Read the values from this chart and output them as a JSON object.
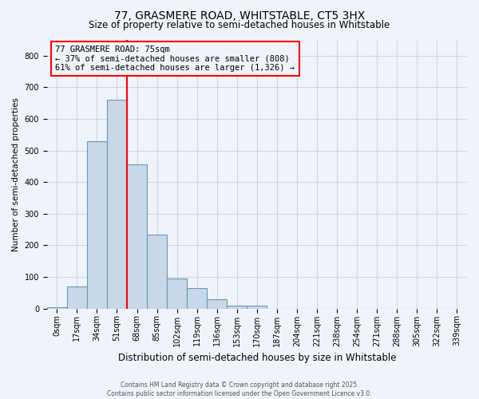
{
  "title": "77, GRASMERE ROAD, WHITSTABLE, CT5 3HX",
  "subtitle": "Size of property relative to semi-detached houses in Whitstable",
  "xlabel": "Distribution of semi-detached houses by size in Whitstable",
  "ylabel": "Number of semi-detached properties",
  "bar_labels": [
    "0sqm",
    "17sqm",
    "34sqm",
    "51sqm",
    "68sqm",
    "85sqm",
    "102sqm",
    "119sqm",
    "136sqm",
    "153sqm",
    "170sqm",
    "187sqm",
    "204sqm",
    "221sqm",
    "238sqm",
    "254sqm",
    "271sqm",
    "288sqm",
    "305sqm",
    "322sqm",
    "339sqm"
  ],
  "bar_values": [
    3,
    70,
    530,
    660,
    455,
    235,
    95,
    65,
    30,
    8,
    8,
    0,
    0,
    0,
    0,
    0,
    0,
    0,
    0,
    0,
    0
  ],
  "bar_color": "#c8d8e8",
  "bar_edge_color": "#6699bb",
  "vline_x": 3.5,
  "vline_color": "red",
  "annotation_box_color": "red",
  "ylim": [
    0,
    850
  ],
  "yticks": [
    0,
    100,
    200,
    300,
    400,
    500,
    600,
    700,
    800
  ],
  "annotation_text_line1": "77 GRASMERE ROAD: 75sqm",
  "annotation_text_line2": "← 37% of semi-detached houses are smaller (808)",
  "annotation_text_line3": "61% of semi-detached houses are larger (1,326) →",
  "footer_line1": "Contains HM Land Registry data © Crown copyright and database right 2025.",
  "footer_line2": "Contains public sector information licensed under the Open Government Licence v3.0.",
  "background_color": "#f0f4fa",
  "grid_color": "#c8d8e8",
  "title_fontsize": 10,
  "subtitle_fontsize": 8.5,
  "xlabel_fontsize": 8.5,
  "ylabel_fontsize": 7.5,
  "tick_fontsize": 7,
  "annotation_fontsize": 7.5,
  "footer_fontsize": 5.5
}
